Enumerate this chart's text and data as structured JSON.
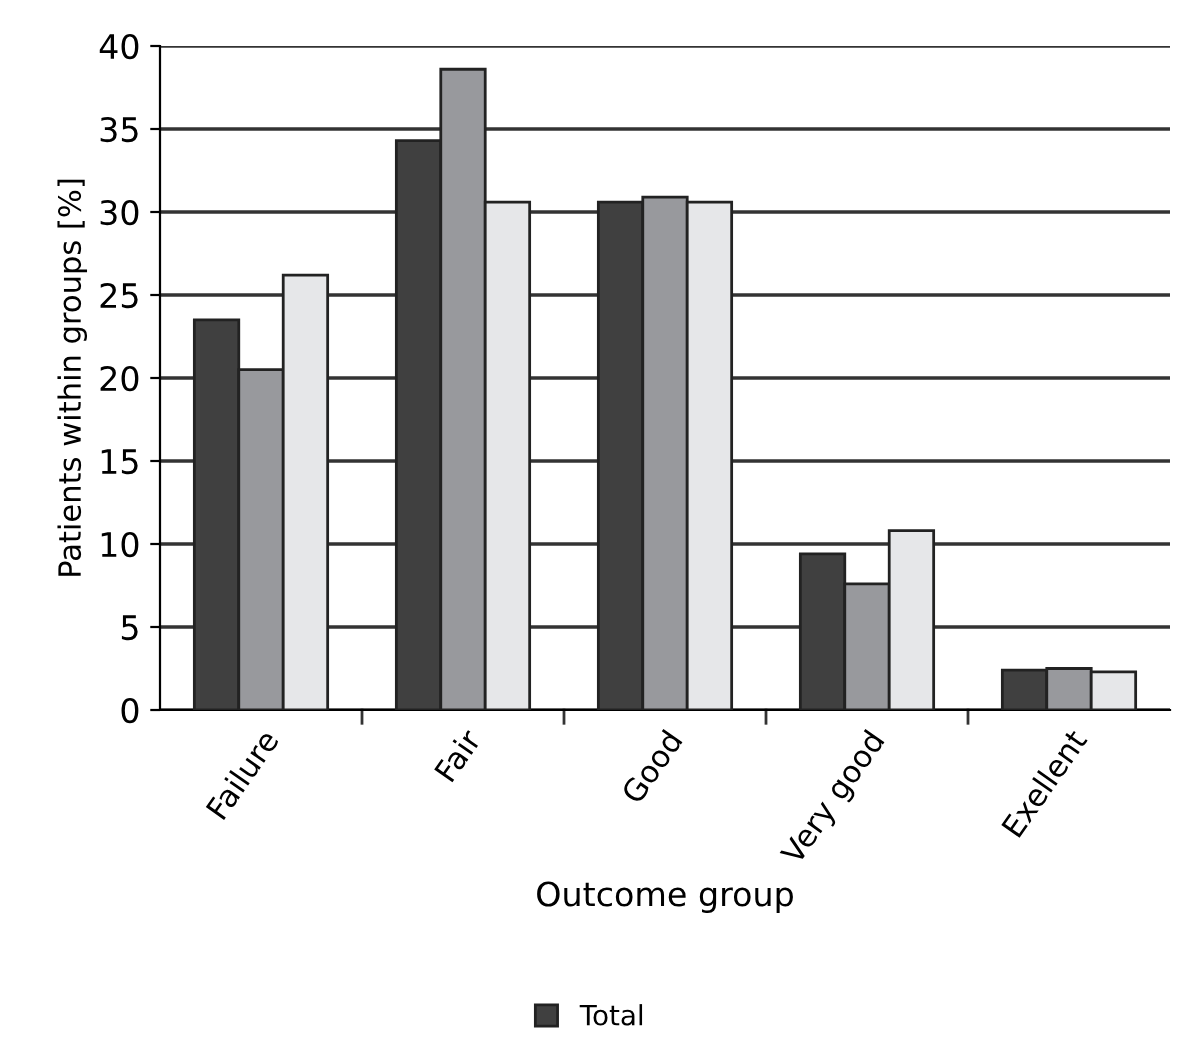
{
  "chart_data": {
    "type": "bar",
    "xlabel": "Outcome group",
    "ylabel": "Patients within groups [%]",
    "categories": [
      "Failure",
      "Fair",
      "Good",
      "Very good",
      "Exellent"
    ],
    "series": [
      {
        "name": "Total",
        "color": "#404040",
        "values": [
          23.5,
          34.3,
          30.6,
          9.4,
          2.4
        ]
      },
      {
        "color": "#98999d",
        "values": [
          20.5,
          38.6,
          30.9,
          7.6,
          2.5
        ]
      },
      {
        "color": "#e6e7e9",
        "values": [
          26.2,
          30.6,
          30.6,
          10.8,
          2.3
        ]
      }
    ],
    "ylim": [
      0,
      40
    ],
    "yticks": [
      0,
      5,
      10,
      15,
      20,
      25,
      30,
      35,
      40
    ],
    "grid": "y",
    "legend": "bottom"
  }
}
